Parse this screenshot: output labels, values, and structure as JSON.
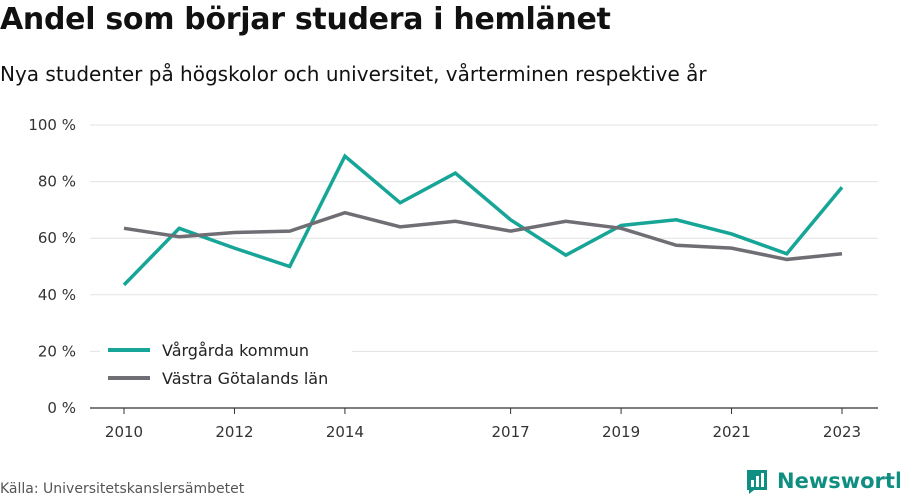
{
  "header": {
    "title": "Andel som börjar studera i hemlänet",
    "subtitle": "Nya studenter på högskolor och universitet, vårterminen respektive år"
  },
  "footer": {
    "source": "Källa: Universitetskanslersämbetet",
    "brand_name": "Newsworthy"
  },
  "chart_data": {
    "type": "line",
    "title": "Andel som börjar studera i hemlänet",
    "subtitle": "Nya studenter på högskolor och universitet, vårterminen respektive år",
    "x": [
      2010,
      2011,
      2012,
      2013,
      2014,
      2015,
      2016,
      2017,
      2018,
      2019,
      2020,
      2021,
      2022,
      2023
    ],
    "x_ticks": [
      2010,
      2012,
      2014,
      2017,
      2019,
      2021,
      2023
    ],
    "y_ticks": [
      0,
      20,
      40,
      60,
      80,
      100
    ],
    "y_tick_suffix": " %",
    "xlim": [
      2010,
      2023
    ],
    "ylim": [
      0,
      100
    ],
    "grid": true,
    "legend_position": "bottom-left",
    "series": [
      {
        "name": "Vårgårda kommun",
        "color": "#16a596",
        "values": [
          43.5,
          63.5,
          56.5,
          50,
          89,
          72.5,
          83,
          66.5,
          54,
          64.5,
          66.5,
          61.5,
          54.5,
          78
        ]
      },
      {
        "name": "Västra Götalands län",
        "color": "#6e6e74",
        "values": [
          63.5,
          60.5,
          62,
          62.5,
          69,
          64,
          66,
          62.5,
          66,
          63.5,
          57.5,
          56.5,
          52.5,
          54.5
        ]
      }
    ]
  }
}
